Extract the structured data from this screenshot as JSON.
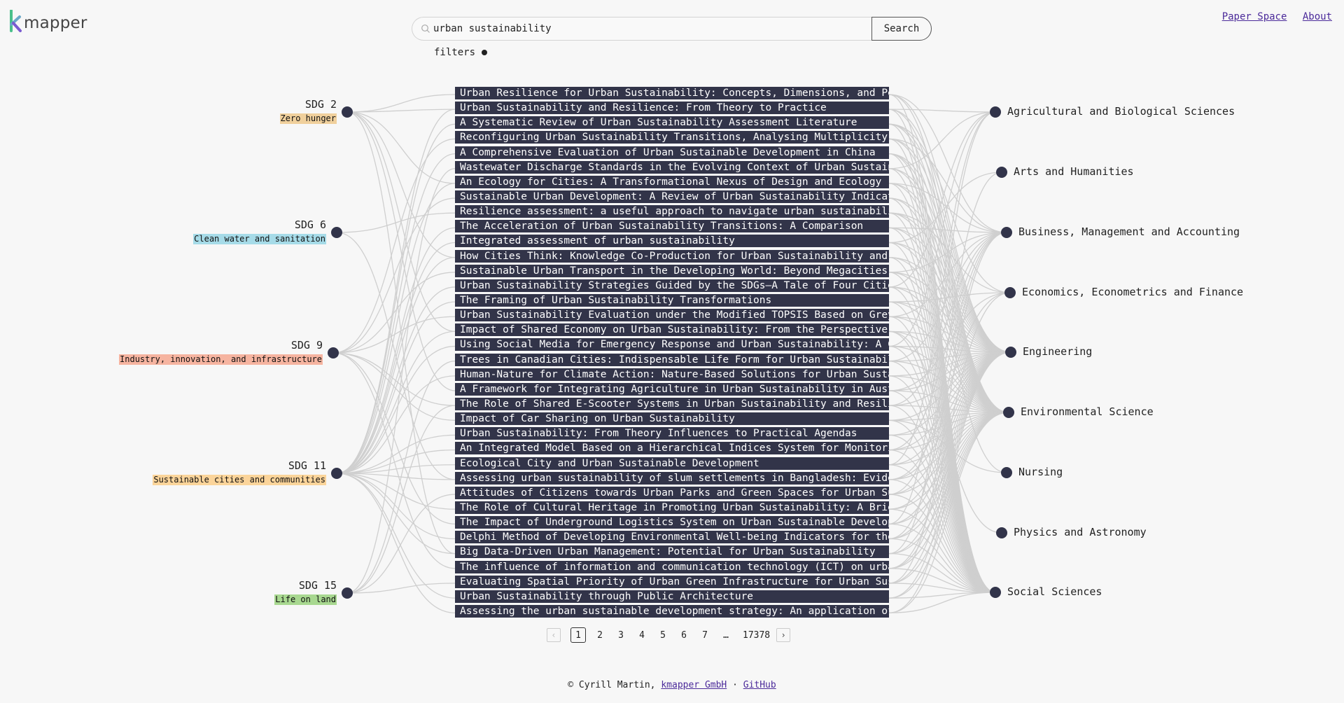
{
  "brand": {
    "name": "mapper",
    "mark": "k"
  },
  "search": {
    "value": "urban sustainability",
    "button_label": "Search"
  },
  "filters": {
    "label": "filters"
  },
  "nav": {
    "paper_space": "Paper Space",
    "about": "About"
  },
  "sdgs": [
    {
      "name": "SDG 2",
      "desc": "Zero hunger",
      "color": "#f0d09c"
    },
    {
      "name": "SDG 6",
      "desc": "Clean water and sanitation",
      "color": "#a6dbe8"
    },
    {
      "name": "SDG 9",
      "desc": "Industry, innovation, and infrastructure",
      "color": "#f6b4a0"
    },
    {
      "name": "SDG 11",
      "desc": "Sustainable cities and communities",
      "color": "#fbd49a"
    },
    {
      "name": "SDG 15",
      "desc": "Life on land",
      "color": "#a8d890"
    }
  ],
  "papers": [
    "Urban Resilience for Urban Sustainability: Concepts, Dimensions, and Perspectives",
    "Urban Sustainability and Resilience: From Theory to Practice",
    "A Systematic Review of Urban Sustainability Assessment Literature",
    "Reconfiguring Urban Sustainability Transitions, Analysing Multiplicity",
    "A Comprehensive Evaluation of Urban Sustainable Development in China",
    "Wastewater Discharge Standards in the Evolving Context of Urban Sustainability",
    "An Ecology for Cities: A Transformational Nexus of Design and Ecology",
    "Sustainable Urban Development: A Review of Urban Sustainability Indicator Frameworks",
    "Resilience assessment: a useful approach to navigate urban sustainability challenges",
    "The Acceleration of Urban Sustainability Transitions: A Comparison",
    "Integrated assessment of urban sustainability",
    "How Cities Think: Knowledge Co-Production for Urban Sustainability and Resilience",
    "Sustainable Urban Transport in the Developing World: Beyond Megacities",
    "Urban Sustainability Strategies Guided by the SDGs—A Tale of Four Cities",
    "The Framing of Urban Sustainability Transformations",
    "Urban Sustainability Evaluation under the Modified TOPSIS Based on Grey Relational Analysis",
    "Impact of Shared Economy on Urban Sustainability: From the Perspective of Social, Economic",
    "Using Social Media for Emergency Response and Urban Sustainability: A Case Study",
    "Trees in Canadian Cities: Indispensable Life Form for Urban Sustainability",
    "Human-Nature for Climate Action: Nature-Based Solutions for Urban Sustainability",
    "A Framework for Integrating Agriculture in Urban Sustainability in Australia",
    "The Role of Shared E-Scooter Systems in Urban Sustainability and Resilience",
    "Impact of Car Sharing on Urban Sustainability",
    "Urban Sustainability: From Theory Influences to Practical Agendas",
    "An Integrated Model Based on a Hierarchical Indices System for Monitoring",
    "Ecological City and Urban Sustainable Development",
    "Assessing urban sustainability of slum settlements in Bangladesh: Evidence",
    "Attitudes of Citizens towards Urban Parks and Green Spaces for Urban Sustainability",
    "The Role of Cultural Heritage in Promoting Urban Sustainability: A Brief Review",
    "The Impact of Underground Logistics System on Urban Sustainable Development",
    "Delphi Method of Developing Environmental Well-being Indicators for the Evaluation",
    "Big Data-Driven Urban Management: Potential for Urban Sustainability",
    "The influence of information and communication technology (ICT) on urban sustainability",
    "Evaluating Spatial Priority of Urban Green Infrastructure for Urban Sustainability",
    "Urban Sustainability through Public Architecture",
    "Assessing the urban sustainable development strategy: An application of a novel"
  ],
  "subjects": [
    "Agricultural and Biological Sciences",
    "Arts and Humanities",
    "Business, Management and Accounting",
    "Economics, Econometrics and Finance",
    "Engineering",
    "Environmental Science",
    "Nursing",
    "Physics and Astronomy",
    "Social Sciences"
  ],
  "pagination": {
    "prev": "‹",
    "next": "›",
    "pages": [
      "1",
      "2",
      "3",
      "4",
      "5",
      "6",
      "7"
    ],
    "ellipsis": "…",
    "last": "17378",
    "current": "1"
  },
  "footer": {
    "copyright": "© Cyrill Martin,",
    "company": "kmapper GmbH",
    "separator": "·",
    "github": "GitHub"
  },
  "icons": {
    "search": "search-icon",
    "logo": "k-logo-icon"
  },
  "colors": {
    "node": "#32344a",
    "paper_bg": "#323449",
    "link_line": "#cfcfcf",
    "link_text": "#4b2a9a",
    "logo_green": "#49c08a",
    "logo_purple": "#7a5bd0"
  }
}
